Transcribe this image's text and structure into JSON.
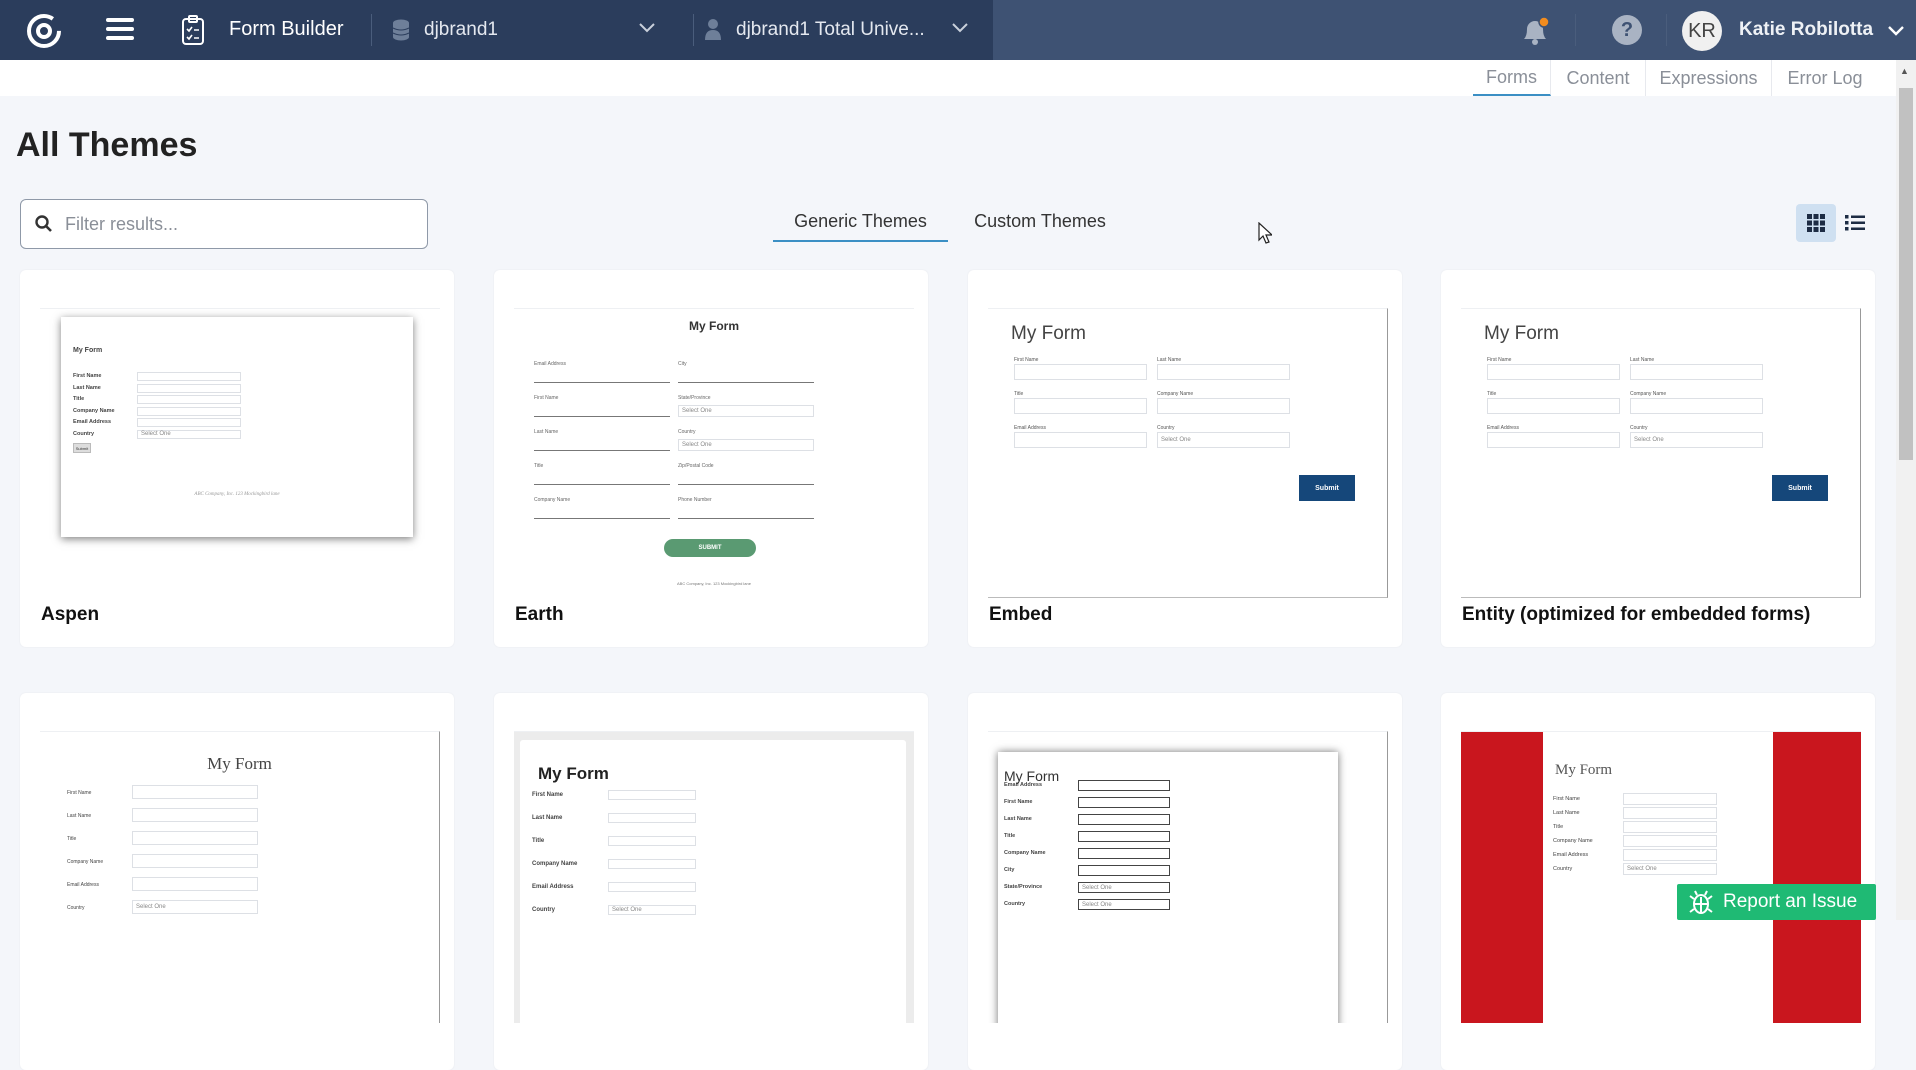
{
  "header": {
    "app_title": "Form Builder",
    "database": "djbrand1",
    "account": "djbrand1 Total Unive...",
    "user_initials": "KR",
    "user_name": "Katie Robilotta",
    "notification_dot_color": "#f28c1e"
  },
  "subtabs": [
    {
      "label": "Forms",
      "active": true
    },
    {
      "label": "Content"
    },
    {
      "label": "Expressions"
    },
    {
      "label": "Error Log"
    }
  ],
  "page_title": "All Themes",
  "search": {
    "placeholder": "Filter results...",
    "value": ""
  },
  "theme_tabs": [
    {
      "label": "Generic Themes",
      "active": true
    },
    {
      "label": "Custom Themes"
    }
  ],
  "view": {
    "mode": "grid"
  },
  "report_button": "Report an Issue",
  "themes": [
    {
      "name": "Aspen",
      "preview": {
        "style": "aspen",
        "title": "My Form",
        "fields": [
          {
            "label": "First Name"
          },
          {
            "label": "Last Name"
          },
          {
            "label": "Title"
          },
          {
            "label": "Company Name"
          },
          {
            "label": "Email Address"
          },
          {
            "label": "Country",
            "select": "Select One"
          }
        ],
        "button": "Submit",
        "footer": "ABC Company, Inc. 123 Mockingbird lane"
      }
    },
    {
      "name": "Earth",
      "preview": {
        "style": "earth",
        "title": "My Form",
        "fields": [
          {
            "label": "Email Address"
          },
          {
            "label": "City"
          },
          {
            "label": "First Name"
          },
          {
            "label": "State/Province",
            "select": "Select One"
          },
          {
            "label": "Last Name"
          },
          {
            "label": "Country",
            "select": "Select One"
          },
          {
            "label": "Title"
          },
          {
            "label": "Zip/Postal Code"
          },
          {
            "label": "Company Name"
          },
          {
            "label": "Phone Number"
          }
        ],
        "button": "SUBMIT",
        "footer": "ABC Company, Inc. 123 Mockingbird lane"
      }
    },
    {
      "name": "Embed",
      "preview": {
        "style": "embed",
        "title": "My Form",
        "fields": [
          {
            "label": "First Name"
          },
          {
            "label": "Last Name"
          },
          {
            "label": "Title"
          },
          {
            "label": "Company Name"
          },
          {
            "label": "Email Address"
          },
          {
            "label": "Country",
            "select": "Select One"
          }
        ],
        "button": "Submit"
      }
    },
    {
      "name": "Entity (optimized for embedded forms)",
      "preview": {
        "style": "embed",
        "title": "My Form",
        "fields": [
          {
            "label": "First Name"
          },
          {
            "label": "Last Name"
          },
          {
            "label": "Title"
          },
          {
            "label": "Company Name"
          },
          {
            "label": "Email Address"
          },
          {
            "label": "Country",
            "select": "Select One"
          }
        ],
        "button": "Submit"
      }
    },
    {
      "name": "",
      "preview": {
        "style": "serif",
        "title": "My Form",
        "fields": [
          {
            "label": "First Name"
          },
          {
            "label": "Last Name"
          },
          {
            "label": "Title"
          },
          {
            "label": "Company Name"
          },
          {
            "label": "Email Address"
          },
          {
            "label": "Country",
            "select": "Select One"
          }
        ]
      }
    },
    {
      "name": "",
      "preview": {
        "style": "grey",
        "title": "My Form",
        "fields": [
          {
            "label": "First Name"
          },
          {
            "label": "Last Name"
          },
          {
            "label": "Title"
          },
          {
            "label": "Company Name"
          },
          {
            "label": "Email Address"
          },
          {
            "label": "Country",
            "select": "Select One"
          }
        ]
      }
    },
    {
      "name": "",
      "preview": {
        "style": "boxed",
        "title": "My Form",
        "fields": [
          {
            "label": "Email Address"
          },
          {
            "label": "First Name"
          },
          {
            "label": "Last Name"
          },
          {
            "label": "Title"
          },
          {
            "label": "Company Name"
          },
          {
            "label": "City"
          },
          {
            "label": "State/Province",
            "select": "Select One"
          },
          {
            "label": "Country",
            "select": "Select One"
          }
        ]
      }
    },
    {
      "name": "",
      "preview": {
        "style": "red",
        "title": "My Form",
        "fields": [
          {
            "label": "First Name"
          },
          {
            "label": "Last Name"
          },
          {
            "label": "Title"
          },
          {
            "label": "Company Name"
          },
          {
            "label": "Email Address"
          },
          {
            "label": "Country",
            "select": "Select One"
          }
        ],
        "accent": "#c9161e"
      }
    }
  ]
}
